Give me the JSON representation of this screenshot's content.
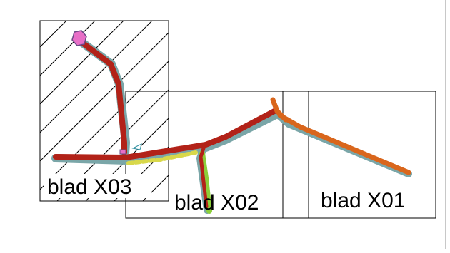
{
  "sheets": [
    {
      "id": "x03",
      "label": "blad X03"
    },
    {
      "id": "x02",
      "label": "blad X02"
    },
    {
      "id": "x01",
      "label": "blad X01"
    }
  ],
  "colors": {
    "road_dark_red": "#b22218",
    "road_orange": "#d9661c",
    "road_casing": "#7aa6a8",
    "verge_green": "#8ccf3a",
    "verge_yellow": "#d8d84a",
    "marker_magenta": "#e86fc7",
    "frame_line": "#000000"
  },
  "icons": {
    "end_marker": "roundabout-marker-icon"
  }
}
